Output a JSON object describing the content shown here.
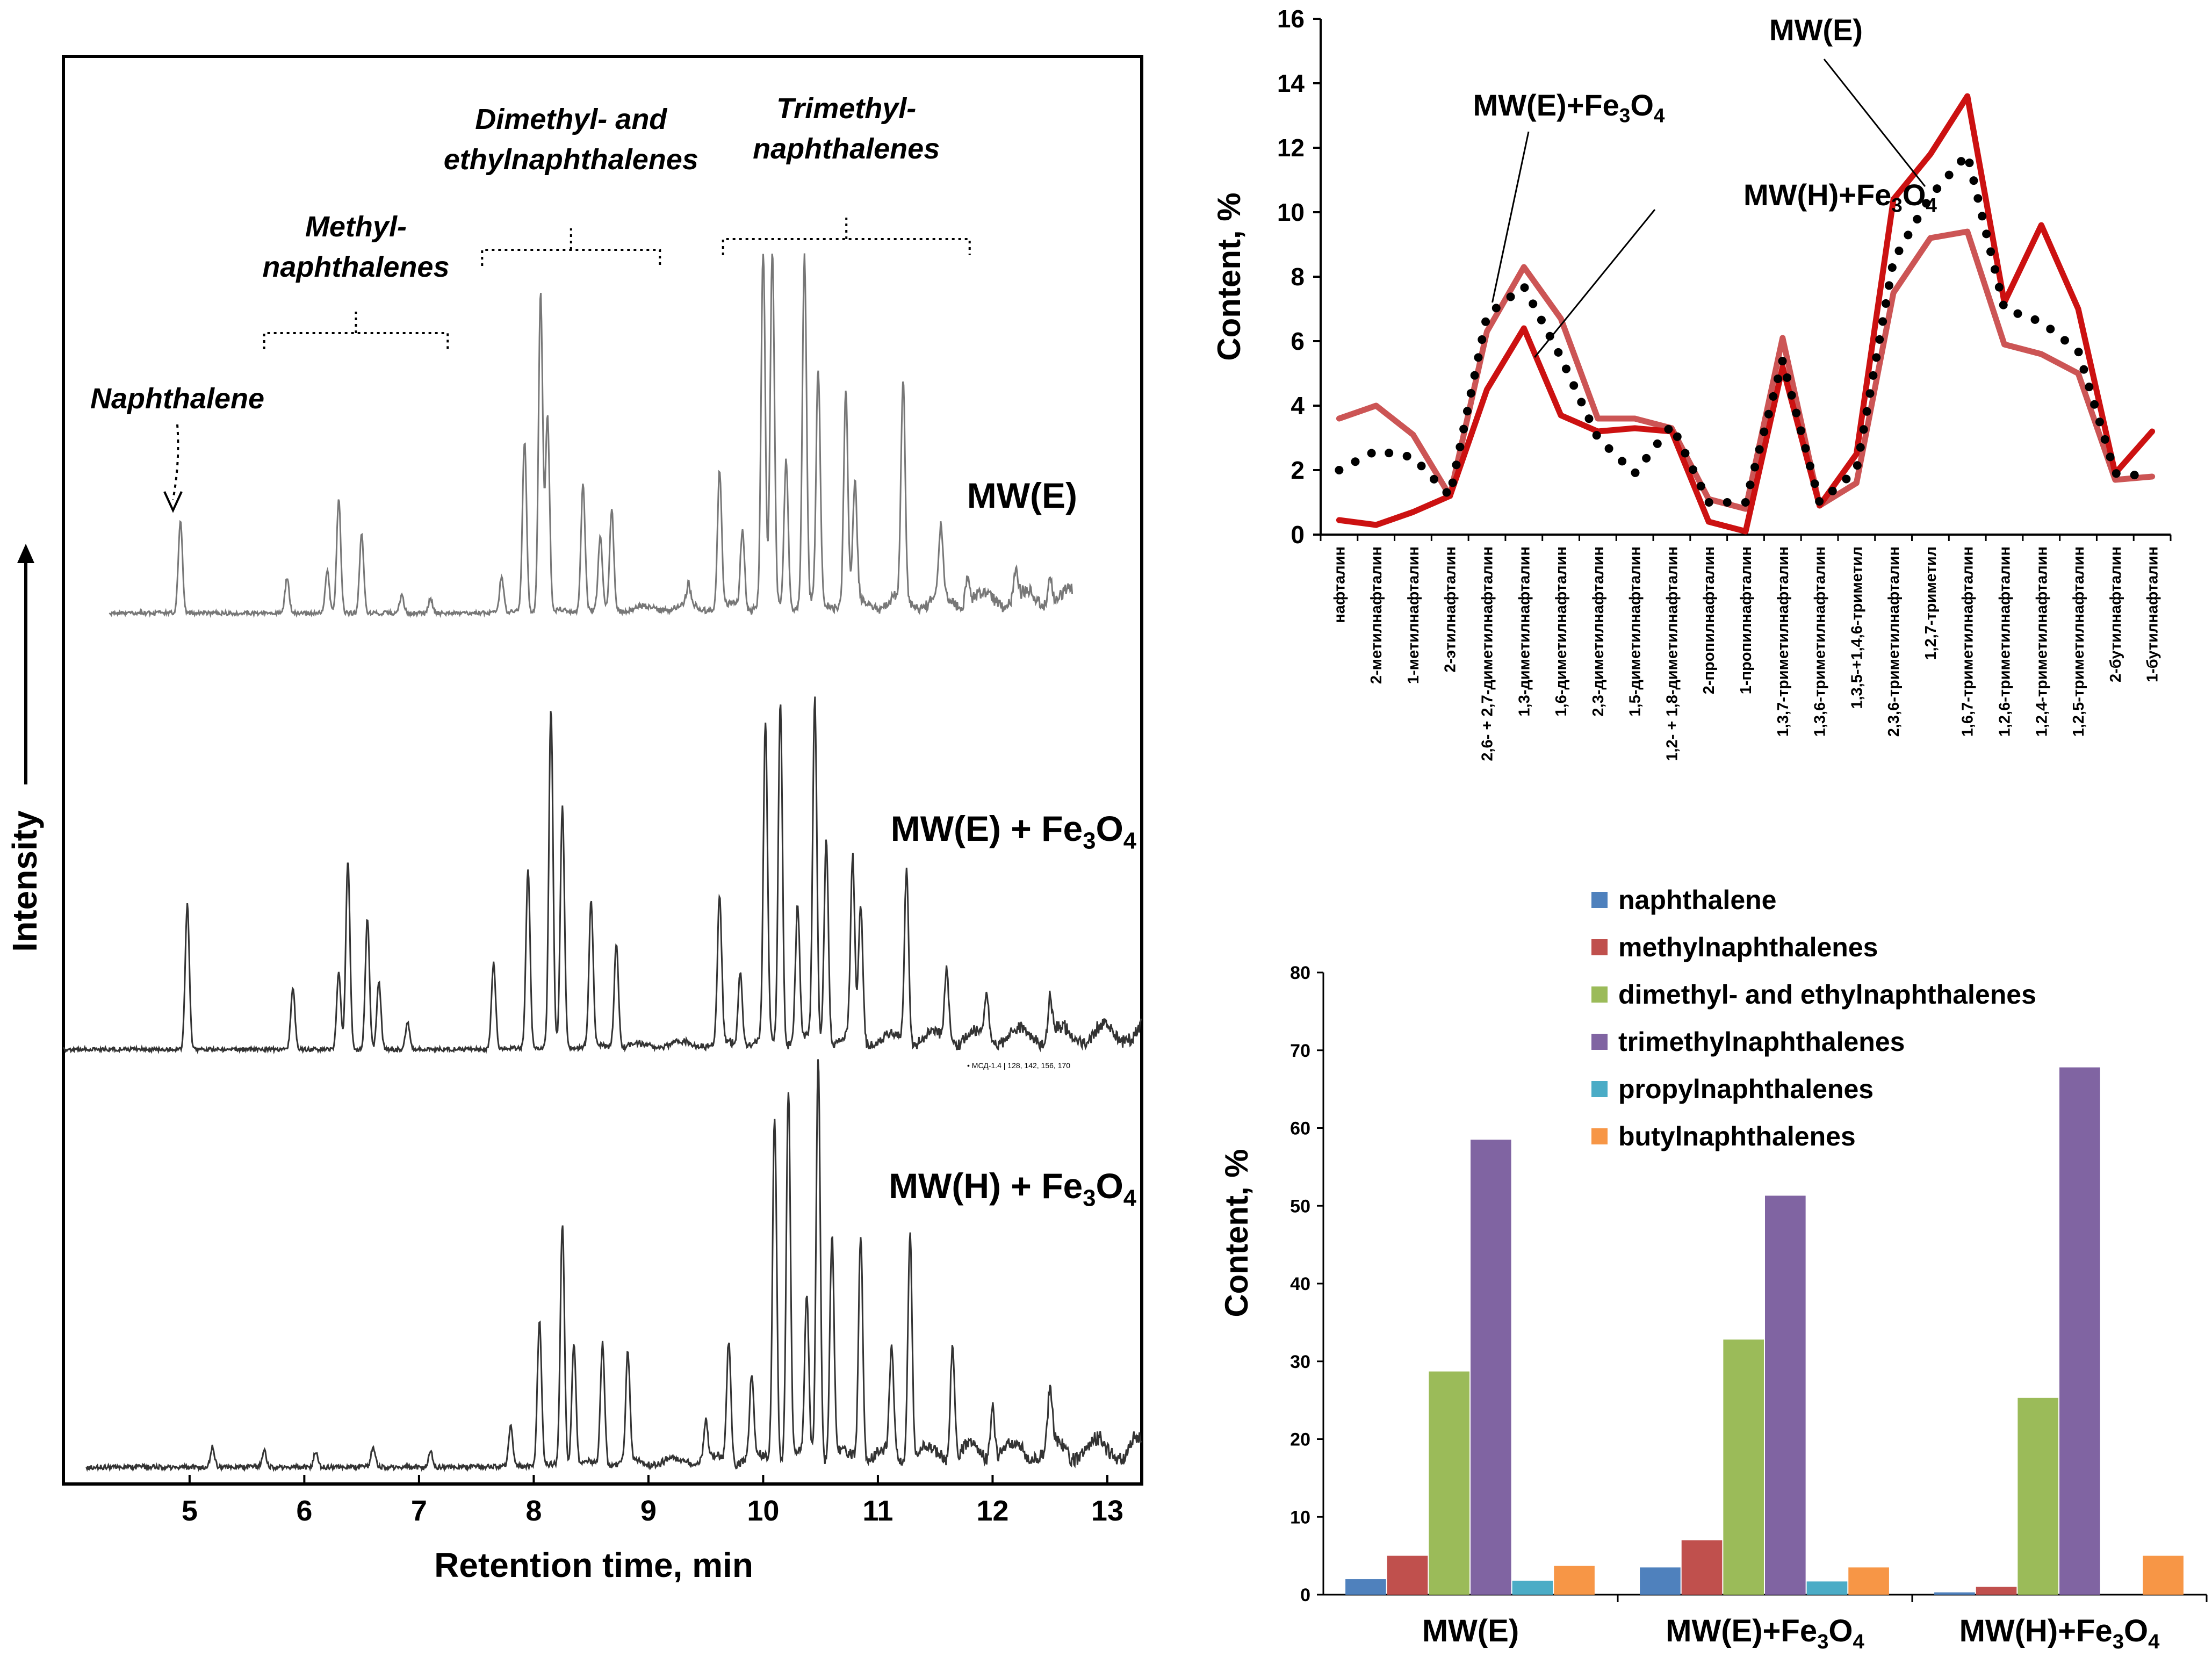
{
  "chart_data": [
    {
      "type": "line",
      "panel": "left-chromatograms",
      "title": "",
      "xlabel": "Retention time, min",
      "ylabel": "Intensity",
      "xlim": [
        3.9,
        13.3
      ],
      "xticks": [
        "5",
        "6",
        "7",
        "8",
        "9",
        "10",
        "11",
        "12",
        "13"
      ],
      "group_labels": [
        {
          "lines": [
            "Naphthalene"
          ],
          "range": [
            4.9,
            4.9
          ]
        },
        {
          "lines": [
            "Methyl-",
            "naphthalenes"
          ],
          "range": [
            5.65,
            7.25
          ]
        },
        {
          "lines": [
            "Dimethyl- and",
            "ethylnaphthalenes"
          ],
          "range": [
            7.55,
            9.1
          ]
        },
        {
          "lines": [
            "Trimethyl-",
            "naphthalenes"
          ],
          "range": [
            9.65,
            11.8
          ]
        }
      ],
      "inset_note": "• МСД-1.4 | 128, 142, 156, 170",
      "traces": [
        {
          "name": "MW(E)",
          "label_main": "MW(E)",
          "label_sub": "",
          "x_range": [
            4.3,
            12.7
          ],
          "peaks": [
            [
              4.92,
              0.26
            ],
            [
              5.85,
              0.1
            ],
            [
              6.2,
              0.12
            ],
            [
              6.3,
              0.32
            ],
            [
              6.5,
              0.22
            ],
            [
              6.85,
              0.05
            ],
            [
              7.1,
              0.04
            ],
            [
              7.72,
              0.1
            ],
            [
              7.92,
              0.48
            ],
            [
              8.06,
              0.9
            ],
            [
              8.12,
              0.55
            ],
            [
              8.43,
              0.36
            ],
            [
              8.58,
              0.2
            ],
            [
              8.68,
              0.28
            ],
            [
              9.35,
              0.06
            ],
            [
              9.62,
              0.38
            ],
            [
              9.82,
              0.22
            ],
            [
              10.0,
              1.0
            ],
            [
              10.08,
              0.99
            ],
            [
              10.2,
              0.42
            ],
            [
              10.36,
              0.98
            ],
            [
              10.48,
              0.65
            ],
            [
              10.72,
              0.6
            ],
            [
              10.8,
              0.33
            ],
            [
              11.22,
              0.62
            ],
            [
              11.55,
              0.2
            ],
            [
              11.78,
              0.08
            ],
            [
              12.2,
              0.08
            ],
            [
              12.5,
              0.09
            ]
          ]
        },
        {
          "name": "MW(E) + Fe3O4",
          "label_main": "MW(E) + Fe",
          "label_sub": "3",
          "label_tail": "O",
          "label_sub2": "4",
          "x_range": [
            3.9,
            13.3
          ],
          "peaks": [
            [
              4.98,
              0.42
            ],
            [
              5.9,
              0.18
            ],
            [
              6.3,
              0.22
            ],
            [
              6.38,
              0.55
            ],
            [
              6.55,
              0.38
            ],
            [
              6.65,
              0.2
            ],
            [
              6.9,
              0.08
            ],
            [
              7.65,
              0.25
            ],
            [
              7.95,
              0.52
            ],
            [
              8.15,
              0.98
            ],
            [
              8.25,
              0.7
            ],
            [
              8.5,
              0.42
            ],
            [
              8.72,
              0.3
            ],
            [
              9.62,
              0.42
            ],
            [
              9.8,
              0.22
            ],
            [
              10.02,
              0.92
            ],
            [
              10.15,
              1.0
            ],
            [
              10.3,
              0.4
            ],
            [
              10.45,
              0.99
            ],
            [
              10.55,
              0.6
            ],
            [
              10.78,
              0.52
            ],
            [
              10.85,
              0.4
            ],
            [
              11.25,
              0.5
            ],
            [
              11.6,
              0.2
            ],
            [
              11.95,
              0.12
            ],
            [
              12.5,
              0.12
            ]
          ]
        },
        {
          "name": "MW(H) + Fe3O4",
          "label_main": "MW(H) + Fe",
          "label_sub": "3",
          "label_tail": "O",
          "label_sub2": "4",
          "x_range": [
            4.1,
            13.3
          ],
          "peaks": [
            [
              5.2,
              0.05
            ],
            [
              5.65,
              0.04
            ],
            [
              6.1,
              0.04
            ],
            [
              6.6,
              0.05
            ],
            [
              7.1,
              0.04
            ],
            [
              7.8,
              0.1
            ],
            [
              8.05,
              0.36
            ],
            [
              8.25,
              0.6
            ],
            [
              8.35,
              0.3
            ],
            [
              8.6,
              0.3
            ],
            [
              8.82,
              0.27
            ],
            [
              9.5,
              0.1
            ],
            [
              9.7,
              0.3
            ],
            [
              9.9,
              0.2
            ],
            [
              10.1,
              0.86
            ],
            [
              10.22,
              0.92
            ],
            [
              10.38,
              0.4
            ],
            [
              10.48,
              1.0
            ],
            [
              10.6,
              0.55
            ],
            [
              10.85,
              0.56
            ],
            [
              11.12,
              0.26
            ],
            [
              11.28,
              0.56
            ],
            [
              11.65,
              0.28
            ],
            [
              12.0,
              0.14
            ],
            [
              12.5,
              0.14
            ]
          ]
        }
      ]
    },
    {
      "type": "line",
      "panel": "top-right",
      "title": "",
      "xlabel": "",
      "ylabel": "Content, %",
      "ylim": [
        0,
        16
      ],
      "yticks": [
        "0",
        "2",
        "4",
        "6",
        "8",
        "10",
        "12",
        "14",
        "16"
      ],
      "categories": [
        "нафталин",
        "2-метилнафталин",
        "1-метилнафталин",
        "2-этилнафталин",
        "2,6- + 2,7-диметилнафталин",
        "1,3-диметилнафталин",
        "1,6-диметилнафталин",
        "2,3-диметилнафталин",
        "1,5-диметилнафталин",
        "1,2- + 1,8-диметилнафталин",
        "2-пропилнафталин",
        "1-пропилнафталин",
        "1,3,7-триметилнафталин",
        "1,3,6-триметилнафталин",
        "1,3,5-+1,4,6-триметил",
        "2,3,6-триметилнафталин",
        "1,2,7-триметил",
        "1,6,7-триметилнафталин",
        "1,2,6-триметилнафталин",
        "1,2,4-триметилнафталин",
        "1,2,5-триметилнафталин",
        "2-бутилнафталин",
        "1-бутилнафталин"
      ],
      "series": [
        {
          "name": "MW(E)",
          "style": "dotted",
          "color": "#000000",
          "values": [
            2.0,
            2.6,
            2.4,
            1.2,
            6.8,
            7.7,
            5.5,
            3.0,
            1.9,
            3.4,
            1.0,
            1.0,
            5.4,
            1.0,
            2.0,
            8.5,
            10.5,
            11.8,
            7.0,
            6.6,
            5.7,
            1.9,
            1.8
          ]
        },
        {
          "name": "MW(E)+Fe3O4",
          "style": "solid",
          "color": "#cc5555",
          "values": [
            3.6,
            4.0,
            3.1,
            1.2,
            6.3,
            8.3,
            6.7,
            3.6,
            3.6,
            3.3,
            1.1,
            0.8,
            6.1,
            0.9,
            1.6,
            7.5,
            9.2,
            9.4,
            5.9,
            5.6,
            5.0,
            1.7,
            1.8
          ]
        },
        {
          "name": "MW(H)+Fe3O4",
          "style": "solid",
          "color": "#cc1111",
          "values": [
            0.45,
            0.3,
            0.7,
            1.2,
            4.5,
            6.4,
            3.7,
            3.2,
            3.3,
            3.2,
            0.4,
            0.1,
            5.2,
            0.9,
            2.5,
            10.4,
            11.8,
            13.6,
            7.2,
            9.6,
            7.0,
            1.9,
            3.2
          ]
        }
      ],
      "annotations": [
        {
          "text": "MW(E)",
          "sub": "",
          "tail": "",
          "sub2": "",
          "series": "MW(E)"
        },
        {
          "text": "MW(E)+Fe",
          "sub": "3",
          "tail": "O",
          "sub2": "4",
          "series": "MW(E)+Fe3O4"
        },
        {
          "text": "MW(H)+Fe",
          "sub": "3",
          "tail": "O",
          "sub2": "4",
          "series": "MW(H)+Fe3O4"
        }
      ]
    },
    {
      "type": "bar",
      "panel": "bottom-right",
      "title": "",
      "xlabel": "",
      "ylabel": "Content, %",
      "ylim": [
        0,
        80
      ],
      "yticks": [
        "0",
        "10",
        "20",
        "30",
        "40",
        "50",
        "60",
        "70",
        "80"
      ],
      "categories": [
        {
          "main": "MW(E)",
          "sub": "",
          "tail": "",
          "sub2": ""
        },
        {
          "main": "MW(E)+Fe",
          "sub": "3",
          "tail": "O",
          "sub2": "4"
        },
        {
          "main": "MW(H)+Fe",
          "sub": "3",
          "tail": "O",
          "sub2": "4"
        }
      ],
      "legend_position": "top",
      "series": [
        {
          "name": "naphthalene",
          "color": "#4F81BD",
          "values": [
            2.0,
            3.5,
            0.3
          ]
        },
        {
          "name": "methylnaphthalenes",
          "color": "#C0504D",
          "values": [
            5.0,
            7.0,
            1.0
          ]
        },
        {
          "name": "dimethyl- and ethylnaphthalenes",
          "color": "#9BBB59",
          "values": [
            28.7,
            32.8,
            25.3
          ]
        },
        {
          "name": "trimethylnaphthalenes",
          "color": "#8064A2",
          "values": [
            58.5,
            51.3,
            67.8
          ]
        },
        {
          "name": "propylnaphthalenes",
          "color": "#4BACC6",
          "values": [
            1.8,
            1.7,
            0.0
          ]
        },
        {
          "name": "butylnaphthalenes",
          "color": "#F79646",
          "values": [
            3.7,
            3.5,
            5.0
          ]
        }
      ]
    }
  ]
}
